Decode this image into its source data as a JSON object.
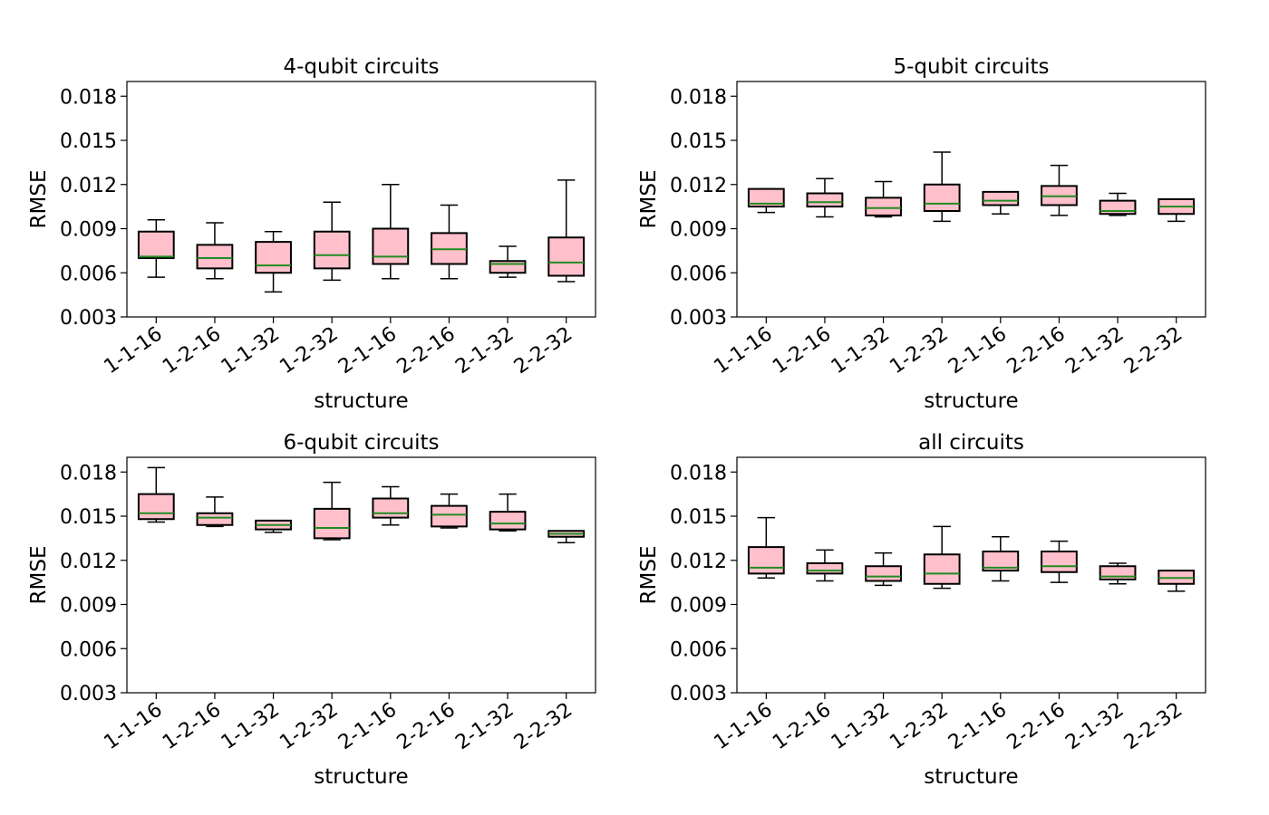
{
  "figure": {
    "colors": {
      "box_fill": "#ffc0cb",
      "box_edge": "#000000",
      "median": "#228b22",
      "axes": "#000000"
    }
  },
  "chart_data": [
    {
      "type": "box",
      "title": "4-qubit circuits",
      "xlabel": "structure",
      "ylabel": "RMSE",
      "ylim": [
        0.003,
        0.019
      ],
      "yticks": [
        "0.003",
        "0.006",
        "0.009",
        "0.012",
        "0.015",
        "0.018"
      ],
      "grid": false,
      "categories": [
        "1-1-16",
        "1-2-16",
        "1-1-32",
        "1-2-32",
        "2-1-16",
        "2-2-16",
        "2-1-32",
        "2-2-32"
      ],
      "boxes": [
        {
          "min": 0.0057,
          "q1": 0.007,
          "median": 0.0071,
          "q3": 0.0088,
          "max": 0.0096
        },
        {
          "min": 0.0056,
          "q1": 0.0063,
          "median": 0.007,
          "q3": 0.0079,
          "max": 0.0094
        },
        {
          "min": 0.0047,
          "q1": 0.006,
          "median": 0.0065,
          "q3": 0.0081,
          "max": 0.0088
        },
        {
          "min": 0.0055,
          "q1": 0.0063,
          "median": 0.0072,
          "q3": 0.0088,
          "max": 0.0108
        },
        {
          "min": 0.0056,
          "q1": 0.0066,
          "median": 0.0071,
          "q3": 0.009,
          "max": 0.012
        },
        {
          "min": 0.0056,
          "q1": 0.0066,
          "median": 0.0076,
          "q3": 0.0087,
          "max": 0.0106
        },
        {
          "min": 0.0057,
          "q1": 0.006,
          "median": 0.0066,
          "q3": 0.0068,
          "max": 0.0078
        },
        {
          "min": 0.0054,
          "q1": 0.0058,
          "median": 0.0067,
          "q3": 0.0084,
          "max": 0.0123
        }
      ]
    },
    {
      "type": "box",
      "title": "5-qubit circuits",
      "xlabel": "structure",
      "ylabel": "RMSE",
      "ylim": [
        0.003,
        0.019
      ],
      "yticks": [
        "0.003",
        "0.006",
        "0.009",
        "0.012",
        "0.015",
        "0.018"
      ],
      "grid": false,
      "categories": [
        "1-1-16",
        "1-2-16",
        "1-1-32",
        "1-2-32",
        "2-1-16",
        "2-2-16",
        "2-1-32",
        "2-2-32"
      ],
      "boxes": [
        {
          "min": 0.0101,
          "q1": 0.0105,
          "median": 0.0107,
          "q3": 0.0117,
          "max": 0.0117
        },
        {
          "min": 0.0098,
          "q1": 0.0105,
          "median": 0.0108,
          "q3": 0.0114,
          "max": 0.0124
        },
        {
          "min": 0.0098,
          "q1": 0.0099,
          "median": 0.0104,
          "q3": 0.0111,
          "max": 0.0122
        },
        {
          "min": 0.0095,
          "q1": 0.0102,
          "median": 0.0107,
          "q3": 0.012,
          "max": 0.0142
        },
        {
          "min": 0.01,
          "q1": 0.0106,
          "median": 0.0109,
          "q3": 0.0115,
          "max": 0.0115
        },
        {
          "min": 0.0099,
          "q1": 0.0106,
          "median": 0.0112,
          "q3": 0.0119,
          "max": 0.0133
        },
        {
          "min": 0.0099,
          "q1": 0.01,
          "median": 0.0102,
          "q3": 0.0109,
          "max": 0.0114
        },
        {
          "min": 0.0095,
          "q1": 0.01,
          "median": 0.0105,
          "q3": 0.011,
          "max": 0.011
        }
      ]
    },
    {
      "type": "box",
      "title": "6-qubit circuits",
      "xlabel": "structure",
      "ylabel": "RMSE",
      "ylim": [
        0.003,
        0.019
      ],
      "yticks": [
        "0.003",
        "0.006",
        "0.009",
        "0.012",
        "0.015",
        "0.018"
      ],
      "grid": false,
      "categories": [
        "1-1-16",
        "1-2-16",
        "1-1-32",
        "1-2-32",
        "2-1-16",
        "2-2-16",
        "2-1-32",
        "2-2-32"
      ],
      "boxes": [
        {
          "min": 0.0146,
          "q1": 0.0148,
          "median": 0.0152,
          "q3": 0.0165,
          "max": 0.0183
        },
        {
          "min": 0.0143,
          "q1": 0.0144,
          "median": 0.0149,
          "q3": 0.0152,
          "max": 0.0163
        },
        {
          "min": 0.0139,
          "q1": 0.0141,
          "median": 0.0144,
          "q3": 0.0147,
          "max": 0.0147
        },
        {
          "min": 0.0134,
          "q1": 0.0135,
          "median": 0.0142,
          "q3": 0.0155,
          "max": 0.0173
        },
        {
          "min": 0.0144,
          "q1": 0.0149,
          "median": 0.0152,
          "q3": 0.0162,
          "max": 0.017
        },
        {
          "min": 0.0142,
          "q1": 0.0143,
          "median": 0.0151,
          "q3": 0.0157,
          "max": 0.0165
        },
        {
          "min": 0.014,
          "q1": 0.0141,
          "median": 0.0145,
          "q3": 0.0153,
          "max": 0.0165
        },
        {
          "min": 0.0132,
          "q1": 0.0136,
          "median": 0.0138,
          "q3": 0.014,
          "max": 0.014
        }
      ]
    },
    {
      "type": "box",
      "title": "all circuits",
      "xlabel": "structure",
      "ylabel": "RMSE",
      "ylim": [
        0.003,
        0.019
      ],
      "yticks": [
        "0.003",
        "0.006",
        "0.009",
        "0.012",
        "0.015",
        "0.018"
      ],
      "grid": false,
      "categories": [
        "1-1-16",
        "1-2-16",
        "1-1-32",
        "1-2-32",
        "2-1-16",
        "2-2-16",
        "2-1-32",
        "2-2-32"
      ],
      "boxes": [
        {
          "min": 0.0108,
          "q1": 0.0111,
          "median": 0.0115,
          "q3": 0.0129,
          "max": 0.0149
        },
        {
          "min": 0.0106,
          "q1": 0.0111,
          "median": 0.0113,
          "q3": 0.0118,
          "max": 0.0127
        },
        {
          "min": 0.0103,
          "q1": 0.0106,
          "median": 0.0109,
          "q3": 0.0116,
          "max": 0.0125
        },
        {
          "min": 0.0101,
          "q1": 0.0104,
          "median": 0.0111,
          "q3": 0.0124,
          "max": 0.0143
        },
        {
          "min": 0.0106,
          "q1": 0.0113,
          "median": 0.0115,
          "q3": 0.0126,
          "max": 0.0136
        },
        {
          "min": 0.0105,
          "q1": 0.0112,
          "median": 0.0116,
          "q3": 0.0126,
          "max": 0.0133
        },
        {
          "min": 0.0104,
          "q1": 0.0107,
          "median": 0.0109,
          "q3": 0.0116,
          "max": 0.0118
        },
        {
          "min": 0.0099,
          "q1": 0.0104,
          "median": 0.0108,
          "q3": 0.0113,
          "max": 0.0113
        }
      ]
    }
  ]
}
